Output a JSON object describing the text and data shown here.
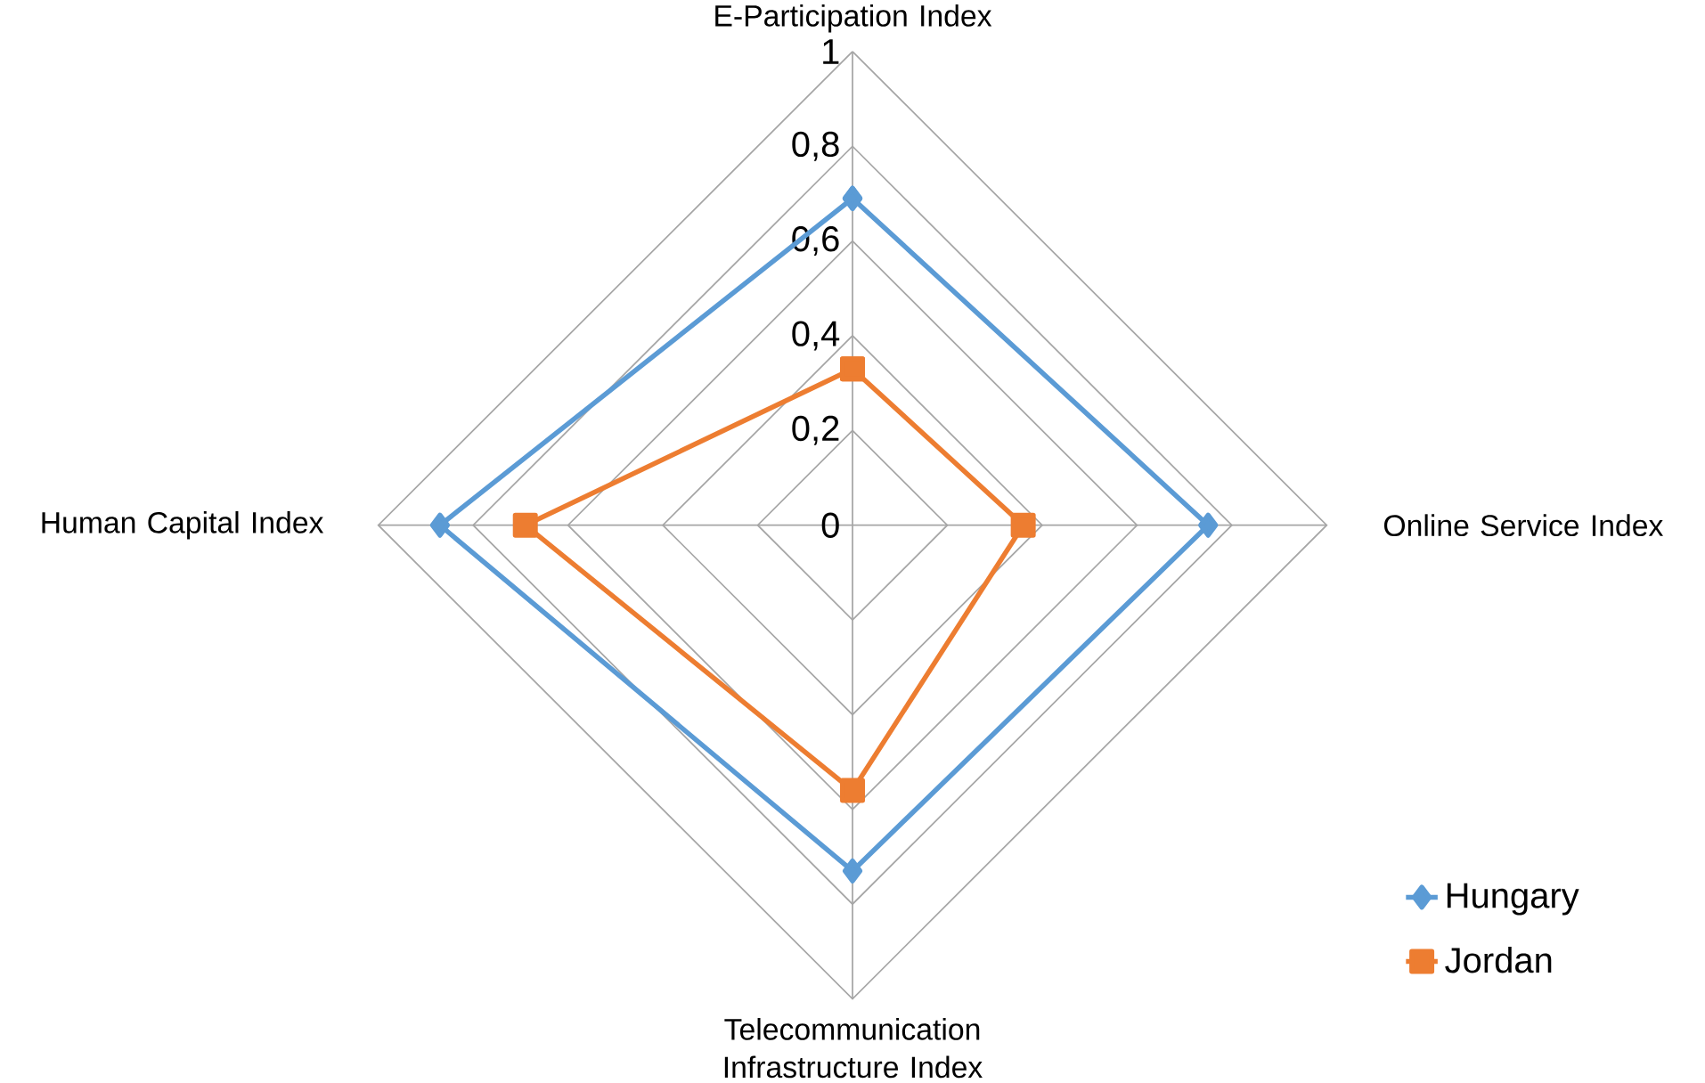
{
  "chart_data": {
    "type": "radar",
    "categories": [
      "E-Participation Index",
      "Online Service Index",
      "Telecommunication Infrastructure Index",
      "Human Capital Index"
    ],
    "series": [
      {
        "name": "Hungary",
        "color": "#5b9bd5",
        "marker": "diamond",
        "values": [
          0.69,
          0.75,
          0.73,
          0.87
        ]
      },
      {
        "name": "Jordan",
        "color": "#ed7d31",
        "marker": "square",
        "values": [
          0.33,
          0.36,
          0.56,
          0.69
        ]
      }
    ],
    "ylim": [
      0,
      1
    ],
    "yticks": [
      {
        "value": 0,
        "label": "0"
      },
      {
        "value": 0.2,
        "label": "0,2"
      },
      {
        "value": 0.4,
        "label": "0,4"
      },
      {
        "value": 0.6,
        "label": "0,6"
      },
      {
        "value": 0.8,
        "label": "0,8"
      },
      {
        "value": 1,
        "label": "1"
      }
    ],
    "grid": true,
    "legend": "right"
  }
}
